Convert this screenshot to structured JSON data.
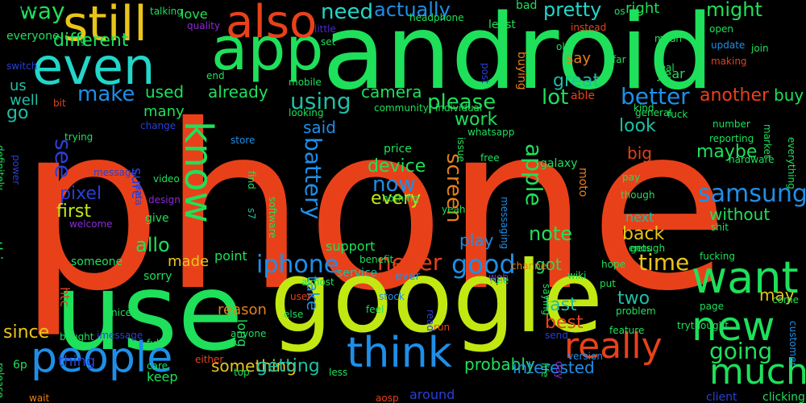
{
  "palette": {
    "red": "#e8411a",
    "green": "#1ee05a",
    "lime": "#c2e812",
    "yellow": "#e8c51a",
    "cyan": "#22d6c9",
    "teal": "#1fbfa3",
    "blue": "#1e8fe8",
    "navy": "#2a3fd6",
    "indigo": "#4b2ad8",
    "orange": "#e87f1a",
    "purple": "#8d2ad6",
    "grey": "#9a9a9a"
  },
  "words": [
    {
      "text": "phone",
      "color": "red",
      "weight": 1.0
    },
    {
      "text": "android",
      "color": "green",
      "weight": 0.62
    },
    {
      "text": "google",
      "color": "lime",
      "weight": 0.6
    },
    {
      "text": "use",
      "color": "green",
      "weight": 0.55
    },
    {
      "text": "app",
      "color": "green",
      "weight": 0.33
    },
    {
      "text": "even",
      "color": "cyan",
      "weight": 0.33
    },
    {
      "text": "still",
      "color": "yellow",
      "weight": 0.3
    },
    {
      "text": "also",
      "color": "red",
      "weight": 0.3
    },
    {
      "text": "people",
      "color": "blue",
      "weight": 0.3
    },
    {
      "text": "know",
      "color": "green",
      "weight": 0.3
    },
    {
      "text": "want",
      "color": "green",
      "weight": 0.3
    },
    {
      "text": "think",
      "color": "blue",
      "weight": 0.29
    },
    {
      "text": "new",
      "color": "green",
      "weight": 0.27
    },
    {
      "text": "much",
      "color": "green",
      "weight": 0.27
    },
    {
      "text": "really",
      "color": "red",
      "weight": 0.27
    },
    {
      "text": "samsung",
      "color": "blue",
      "weight": 0.18
    },
    {
      "text": "battery",
      "color": "blue",
      "weight": 0.17
    },
    {
      "text": "iphone",
      "color": "blue",
      "weight": 0.16
    },
    {
      "text": "good",
      "color": "blue",
      "weight": 0.15
    },
    {
      "text": "never",
      "color": "red",
      "weight": 0.15
    },
    {
      "text": "time",
      "color": "yellow",
      "weight": 0.15
    },
    {
      "text": "going",
      "color": "green",
      "weight": 0.15
    },
    {
      "text": "apple",
      "color": "green",
      "weight": 0.14
    },
    {
      "text": "using",
      "color": "teal",
      "weight": 0.14
    },
    {
      "text": "better",
      "color": "blue",
      "weight": 0.14
    },
    {
      "text": "need",
      "color": "cyan",
      "weight": 0.13
    },
    {
      "text": "way",
      "color": "green",
      "weight": 0.13
    },
    {
      "text": "make",
      "color": "blue",
      "weight": 0.13
    },
    {
      "text": "see",
      "color": "navy",
      "weight": 0.13
    },
    {
      "text": "now",
      "color": "blue",
      "weight": 0.13
    },
    {
      "text": "pretty",
      "color": "cyan",
      "weight": 0.12
    },
    {
      "text": "actually",
      "color": "blue",
      "weight": 0.12
    },
    {
      "text": "might",
      "color": "green",
      "weight": 0.12
    },
    {
      "text": "different",
      "color": "green",
      "weight": 0.12
    },
    {
      "text": "used",
      "color": "green",
      "weight": 0.12
    },
    {
      "text": "already",
      "color": "green",
      "weight": 0.12
    },
    {
      "text": "please",
      "color": "green",
      "weight": 0.12
    },
    {
      "text": "camera",
      "color": "green",
      "weight": 0.12
    },
    {
      "text": "lot",
      "color": "green",
      "weight": 0.12
    },
    {
      "text": "great",
      "color": "teal",
      "weight": 0.12
    },
    {
      "text": "another",
      "color": "red",
      "weight": 0.12
    },
    {
      "text": "look",
      "color": "teal",
      "weight": 0.12
    },
    {
      "text": "maybe",
      "color": "green",
      "weight": 0.12
    },
    {
      "text": "device",
      "color": "green",
      "weight": 0.12
    },
    {
      "text": "every",
      "color": "lime",
      "weight": 0.12
    },
    {
      "text": "screen",
      "color": "orange",
      "weight": 0.12
    },
    {
      "text": "note",
      "color": "green",
      "weight": 0.12
    },
    {
      "text": "back",
      "color": "yellow",
      "weight": 0.12
    },
    {
      "text": "pixel",
      "color": "navy",
      "weight": 0.11
    },
    {
      "text": "first",
      "color": "lime",
      "weight": 0.11
    },
    {
      "text": "allo",
      "color": "green",
      "weight": 0.11
    },
    {
      "text": "made",
      "color": "yellow",
      "weight": 0.1
    },
    {
      "text": "since",
      "color": "yellow",
      "weight": 0.1
    },
    {
      "text": "take",
      "color": "blue",
      "weight": 0.1
    },
    {
      "text": "two",
      "color": "teal",
      "weight": 0.1
    },
    {
      "text": "last",
      "color": "teal",
      "weight": 0.1
    },
    {
      "text": "best",
      "color": "red",
      "weight": 0.1
    },
    {
      "text": "got",
      "color": "green",
      "weight": 0.1
    },
    {
      "text": "play",
      "color": "blue",
      "weight": 0.1
    },
    {
      "text": "may",
      "color": "yellow",
      "weight": 0.1
    },
    {
      "text": "without",
      "color": "green",
      "weight": 0.1
    },
    {
      "text": "something",
      "color": "yellow",
      "weight": 0.1
    },
    {
      "text": "getting",
      "color": "teal",
      "weight": 0.1
    },
    {
      "text": "probably",
      "color": "green",
      "weight": 0.1
    },
    {
      "text": "interested",
      "color": "blue",
      "weight": 0.1
    },
    {
      "text": "thing",
      "color": "navy",
      "weight": 0.1
    },
    {
      "text": "go",
      "color": "teal",
      "weight": 0.09
    },
    {
      "text": "us",
      "color": "teal",
      "weight": 0.09
    },
    {
      "text": "well",
      "color": "teal",
      "weight": 0.09
    },
    {
      "text": "love",
      "color": "green",
      "weight": 0.09
    },
    {
      "text": "right",
      "color": "green",
      "weight": 0.09
    },
    {
      "text": "say",
      "color": "orange",
      "weight": 0.09
    },
    {
      "text": "year",
      "color": "green",
      "weight": 0.09
    },
    {
      "text": "buy",
      "color": "green",
      "weight": 0.09
    },
    {
      "text": "said",
      "color": "blue",
      "weight": 0.09
    },
    {
      "text": "work",
      "color": "green",
      "weight": 0.09
    },
    {
      "text": "big",
      "color": "red",
      "weight": 0.09
    },
    {
      "text": "many",
      "color": "green",
      "weight": 0.09
    },
    {
      "text": "sure",
      "color": "navy",
      "weight": 0.09
    },
    {
      "text": "anything",
      "color": "green",
      "weight": 0.09
    },
    {
      "text": "htc",
      "color": "red",
      "weight": 0.08
    },
    {
      "text": "6p",
      "color": "green",
      "weight": 0.08
    },
    {
      "text": "long",
      "color": "green",
      "weight": 0.08
    },
    {
      "text": "keep",
      "color": "green",
      "weight": 0.08
    },
    {
      "text": "around",
      "color": "navy",
      "weight": 0.08
    },
    {
      "text": "point",
      "color": "green",
      "weight": 0.08
    },
    {
      "text": "support",
      "color": "green",
      "weight": 0.08
    },
    {
      "text": "reason",
      "color": "orange",
      "weight": 0.08
    },
    {
      "text": "someone",
      "color": "green",
      "weight": 0.08
    },
    {
      "text": "give",
      "color": "green",
      "weight": 0.08
    },
    {
      "text": "price",
      "color": "green",
      "weight": 0.08
    },
    {
      "text": "galaxy",
      "color": "green",
      "weight": 0.08
    },
    {
      "text": "moto",
      "color": "orange",
      "weight": 0.08
    },
    {
      "text": "next",
      "color": "teal",
      "weight": 0.08
    },
    {
      "text": "service",
      "color": "teal",
      "weight": 0.07
    },
    {
      "text": "ever",
      "color": "blue",
      "weight": 0.07
    },
    {
      "text": "sorry",
      "color": "green",
      "weight": 0.07
    },
    {
      "text": "bought",
      "color": "green",
      "weight": 0.06
    },
    {
      "text": "buying",
      "color": "orange",
      "weight": 0.06
    },
    {
      "text": "able",
      "color": "red",
      "weight": 0.06
    },
    {
      "text": "everyone",
      "color": "green",
      "weight": 0.06
    },
    {
      "text": "definitely",
      "color": "green",
      "weight": 0.05
    },
    {
      "text": "everything",
      "color": "green",
      "weight": 0.05
    },
    {
      "text": "least",
      "color": "green",
      "weight": 0.06
    },
    {
      "text": "bad",
      "color": "green",
      "weight": 0.06
    },
    {
      "text": "nothing",
      "color": "green",
      "weight": 0.06
    },
    {
      "text": "trying",
      "color": "green",
      "weight": 0.06
    },
    {
      "text": "yeah",
      "color": "green",
      "weight": 0.05
    },
    {
      "text": "video",
      "color": "green",
      "weight": 0.05
    },
    {
      "text": "design",
      "color": "purple",
      "weight": 0.05
    },
    {
      "text": "data",
      "color": "navy",
      "weight": 0.05
    },
    {
      "text": "welcome",
      "color": "purple",
      "weight": 0.05
    },
    {
      "text": "s7",
      "color": "teal",
      "weight": 0.05
    },
    {
      "text": "find",
      "color": "green",
      "weight": 0.05
    },
    {
      "text": "software",
      "color": "green",
      "weight": 0.05
    },
    {
      "text": "store",
      "color": "blue",
      "weight": 0.05
    },
    {
      "text": "almost",
      "color": "green",
      "weight": 0.05
    },
    {
      "text": "benefit",
      "color": "green",
      "weight": 0.05
    },
    {
      "text": "stock",
      "color": "blue",
      "weight": 0.05
    },
    {
      "text": "messaging",
      "color": "blue",
      "weight": 0.05
    },
    {
      "text": "imessage",
      "color": "navy",
      "weight": 0.05
    },
    {
      "text": "message",
      "color": "navy",
      "weight": 0.05
    },
    {
      "text": "power",
      "color": "navy",
      "weight": 0.05
    },
    {
      "text": "else",
      "color": "green",
      "weight": 0.05
    },
    {
      "text": "feel",
      "color": "green",
      "weight": 0.05
    },
    {
      "text": "user",
      "color": "red",
      "weight": 0.05
    },
    {
      "text": "channel",
      "color": "orange",
      "weight": 0.05
    },
    {
      "text": "web",
      "color": "purple",
      "weight": 0.05
    },
    {
      "text": "rule",
      "color": "green",
      "weight": 0.05
    },
    {
      "text": "saying",
      "color": "green",
      "weight": 0.05
    },
    {
      "text": "wiki",
      "color": "green",
      "weight": 0.05
    },
    {
      "text": "hope",
      "color": "green",
      "weight": 0.05
    },
    {
      "text": "put",
      "color": "green",
      "weight": 0.05
    },
    {
      "text": "problem",
      "color": "green",
      "weight": 0.05
    },
    {
      "text": "though",
      "color": "green",
      "weight": 0.05
    },
    {
      "text": "pay",
      "color": "green",
      "weight": 0.05
    },
    {
      "text": "gets",
      "color": "green",
      "weight": 0.05
    },
    {
      "text": "enough",
      "color": "green",
      "weight": 0.05
    },
    {
      "text": "fucking",
      "color": "green",
      "weight": 0.05
    },
    {
      "text": "shit",
      "color": "green",
      "weight": 0.05
    },
    {
      "text": "hardware",
      "color": "green",
      "weight": 0.05
    },
    {
      "text": "reporting",
      "color": "green",
      "weight": 0.05
    },
    {
      "text": "number",
      "color": "green",
      "weight": 0.05
    },
    {
      "text": "market",
      "color": "green",
      "weight": 0.05
    },
    {
      "text": "general",
      "color": "green",
      "weight": 0.05
    },
    {
      "text": "fuck",
      "color": "green",
      "weight": 0.05
    },
    {
      "text": "kind",
      "color": "green",
      "weight": 0.05
    },
    {
      "text": "come",
      "color": "green",
      "weight": 0.05
    },
    {
      "text": "page",
      "color": "green",
      "weight": 0.05
    },
    {
      "text": "trythought",
      "color": "green",
      "weight": 0.05
    },
    {
      "text": "feature",
      "color": "green",
      "weight": 0.05
    },
    {
      "text": "send",
      "color": "navy",
      "weight": 0.05
    },
    {
      "text": "version",
      "color": "blue",
      "weight": 0.05
    },
    {
      "text": "customer",
      "color": "blue",
      "weight": 0.05
    },
    {
      "text": "client",
      "color": "navy",
      "weight": 0.05
    },
    {
      "text": "clicking",
      "color": "green",
      "weight": 0.05
    },
    {
      "text": "life",
      "color": "green",
      "weight": 0.05
    },
    {
      "text": "day",
      "color": "purple",
      "weight": 0.05
    },
    {
      "text": "run",
      "color": "red",
      "weight": 0.05
    },
    {
      "text": "read",
      "color": "navy",
      "weight": 0.05
    },
    {
      "text": "aosp",
      "color": "red",
      "weight": 0.05
    },
    {
      "text": "less",
      "color": "green",
      "weight": 0.05
    },
    {
      "text": "top",
      "color": "green",
      "weight": 0.05
    },
    {
      "text": "either",
      "color": "red",
      "weight": 0.05
    },
    {
      "text": "care",
      "color": "green",
      "weight": 0.05
    },
    {
      "text": "full",
      "color": "green",
      "weight": 0.05
    },
    {
      "text": "nice",
      "color": "green",
      "weight": 0.05
    },
    {
      "text": "anyone",
      "color": "green",
      "weight": 0.05
    },
    {
      "text": "wait",
      "color": "orange",
      "weight": 0.05
    },
    {
      "text": "release",
      "color": "green",
      "weight": 0.05
    },
    {
      "text": "switch",
      "color": "navy",
      "weight": 0.05
    },
    {
      "text": "bit",
      "color": "red",
      "weight": 0.05
    },
    {
      "text": "lg",
      "color": "green",
      "weight": 0.05
    },
    {
      "text": "quality",
      "color": "purple",
      "weight": 0.05
    },
    {
      "text": "talking",
      "color": "green",
      "weight": 0.05
    },
    {
      "text": "end",
      "color": "green",
      "weight": 0.05
    },
    {
      "text": "change",
      "color": "navy",
      "weight": 0.05
    },
    {
      "text": "little",
      "color": "indigo",
      "weight": 0.05
    },
    {
      "text": "set",
      "color": "green",
      "weight": 0.05
    },
    {
      "text": "headphone",
      "color": "green",
      "weight": 0.05
    },
    {
      "text": "instead",
      "color": "red",
      "weight": 0.05
    },
    {
      "text": "os",
      "color": "green",
      "weight": 0.05
    },
    {
      "text": "open",
      "color": "green",
      "weight": 0.05
    },
    {
      "text": "mean",
      "color": "green",
      "weight": 0.05
    },
    {
      "text": "update",
      "color": "blue",
      "weight": 0.05
    },
    {
      "text": "join",
      "color": "green",
      "weight": 0.05
    },
    {
      "text": "old",
      "color": "green",
      "weight": 0.05
    },
    {
      "text": "far",
      "color": "green",
      "weight": 0.05
    },
    {
      "text": "real",
      "color": "green",
      "weight": 0.05
    },
    {
      "text": "making",
      "color": "red",
      "weight": 0.05
    },
    {
      "text": "post",
      "color": "navy",
      "weight": 0.05
    },
    {
      "text": "mobile",
      "color": "green",
      "weight": 0.05
    },
    {
      "text": "looking",
      "color": "green",
      "weight": 0.05
    },
    {
      "text": "community",
      "color": "green",
      "weight": 0.05
    },
    {
      "text": "individual",
      "color": "green",
      "weight": 0.05
    },
    {
      "text": "whatsapp",
      "color": "green",
      "weight": 0.05
    },
    {
      "text": "issue",
      "color": "green",
      "weight": 0.05
    },
    {
      "text": "free",
      "color": "green",
      "weight": 0.05
    },
    {
      "text": "home",
      "color": "green",
      "weight": 0.05
    }
  ]
}
